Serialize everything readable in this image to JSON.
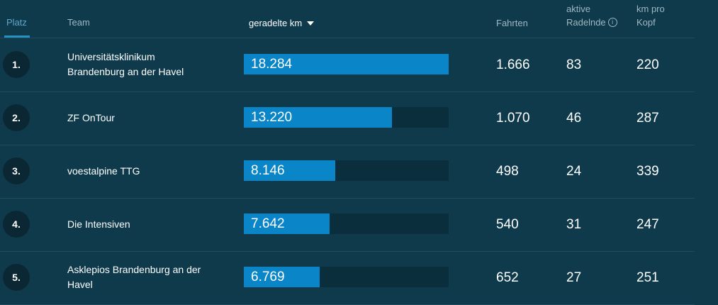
{
  "header": {
    "platz": "Platz",
    "team": "Team",
    "km": "geradelte km",
    "fahrten": "Fahrten",
    "aktive_line1": "aktive",
    "aktive_line2": "Radelnde",
    "kmpro_line1": "km pro",
    "kmpro_line2": "Kopf",
    "info_glyph": "i"
  },
  "max_km": 18284,
  "rows": [
    {
      "rank": "1.",
      "team_line1": "Universitätsklinikum",
      "team_line2": "Brandenburg an der Havel",
      "km": "18.284",
      "km_value": 18284,
      "fahrten": "1.666",
      "aktive": "83",
      "kmpro": "220"
    },
    {
      "rank": "2.",
      "team_line1": "ZF OnTour",
      "team_line2": "",
      "km": "13.220",
      "km_value": 13220,
      "fahrten": "1.070",
      "aktive": "46",
      "kmpro": "287"
    },
    {
      "rank": "3.",
      "team_line1": "voestalpine TTG",
      "team_line2": "",
      "km": "8.146",
      "km_value": 8146,
      "fahrten": "498",
      "aktive": "24",
      "kmpro": "339"
    },
    {
      "rank": "4.",
      "team_line1": "Die Intensiven",
      "team_line2": "",
      "km": "7.642",
      "km_value": 7642,
      "fahrten": "540",
      "aktive": "31",
      "kmpro": "247"
    },
    {
      "rank": "5.",
      "team_line1": "Asklepios Brandenburg an der",
      "team_line2": "Havel",
      "km": "6.769",
      "km_value": 6769,
      "fahrten": "652",
      "aktive": "27",
      "kmpro": "251"
    }
  ]
}
